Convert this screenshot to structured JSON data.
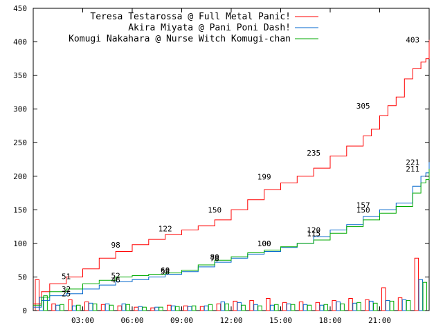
{
  "chart_data": {
    "type": "line",
    "title": "",
    "xlabel": "",
    "ylabel": "",
    "xlim": [
      0,
      24
    ],
    "ylim": [
      0,
      450
    ],
    "x_ticks": [
      {
        "value": 3,
        "label": "03:00"
      },
      {
        "value": 6,
        "label": "06:00"
      },
      {
        "value": 9,
        "label": "09:00"
      },
      {
        "value": 12,
        "label": "12:00"
      },
      {
        "value": 15,
        "label": "15:00"
      },
      {
        "value": 18,
        "label": "18:00"
      },
      {
        "value": 21,
        "label": "21:00"
      }
    ],
    "y_ticks": [
      {
        "value": 0,
        "label": "0"
      },
      {
        "value": 50,
        "label": "50"
      },
      {
        "value": 100,
        "label": "100"
      },
      {
        "value": 150,
        "label": "150"
      },
      {
        "value": 200,
        "label": "200"
      },
      {
        "value": 250,
        "label": "250"
      },
      {
        "value": 300,
        "label": "300"
      },
      {
        "value": 350,
        "label": "350"
      },
      {
        "value": 400,
        "label": "400"
      },
      {
        "value": 450,
        "label": "450"
      }
    ],
    "grid": false,
    "legend_position": "top-right",
    "hourly_x": [
      0.5,
      1.5,
      2.5,
      3.5,
      4.5,
      5.5,
      6.5,
      7.5,
      8.5,
      9.5,
      10.5,
      11.5,
      12.5,
      13.5,
      14.5,
      15.5,
      16.5,
      17.5,
      18.5,
      19.5,
      20.5,
      21.5,
      22.5,
      23.5
    ],
    "series": [
      {
        "name": "Teresa Testarossa @ Full Metal Panic!",
        "color": "#ff0000",
        "cumulative": {
          "x": [
            0,
            0.5,
            1,
            2,
            3,
            4,
            5,
            6,
            7,
            8,
            9,
            10,
            11,
            12,
            13,
            14,
            15,
            16,
            17,
            18,
            19,
            20,
            20.5,
            21,
            21.5,
            22,
            22.5,
            23,
            23.5,
            23.8,
            24
          ],
          "y": [
            10,
            28,
            40,
            50,
            62,
            78,
            88,
            98,
            106,
            113,
            120,
            126,
            135,
            150,
            165,
            180,
            190,
            200,
            212,
            230,
            245,
            260,
            270,
            290,
            305,
            318,
            345,
            360,
            370,
            375,
            403
          ]
        },
        "hourly": [
          46,
          10,
          16,
          13,
          9,
          7,
          5,
          4,
          8,
          7,
          6,
          10,
          14,
          15,
          18,
          12,
          13,
          12,
          15,
          18,
          16,
          34,
          19,
          78
        ],
        "annotations": [
          {
            "x": 2,
            "y": 51,
            "label": "51"
          },
          {
            "x": 5,
            "y": 98,
            "label": "98"
          },
          {
            "x": 8,
            "y": 122,
            "label": "122"
          },
          {
            "x": 11,
            "y": 150,
            "label": "150"
          },
          {
            "x": 14,
            "y": 199,
            "label": "199"
          },
          {
            "x": 17,
            "y": 235,
            "label": "235"
          },
          {
            "x": 20,
            "y": 305,
            "label": "305"
          },
          {
            "x": 23,
            "y": 403,
            "label": "403"
          }
        ]
      },
      {
        "name": "Akira Miyata @ Pani Poni Dash!",
        "color": "#0066cc",
        "cumulative": {
          "x": [
            0,
            0.5,
            1,
            2,
            3,
            4,
            5,
            6,
            7,
            8,
            9,
            10,
            11,
            12,
            13,
            14,
            15,
            16,
            17,
            18,
            19,
            20,
            21,
            22,
            23,
            23.5,
            23.8,
            24
          ],
          "y": [
            5,
            15,
            22,
            25,
            32,
            38,
            43,
            46,
            50,
            54,
            58,
            65,
            72,
            78,
            84,
            88,
            94,
            100,
            110,
            120,
            128,
            140,
            150,
            160,
            185,
            200,
            205,
            221
          ]
        },
        "hourly": [
          20,
          8,
          7,
          11,
          10,
          10,
          6,
          5,
          7,
          6,
          7,
          13,
          12,
          9,
          8,
          10,
          9,
          8,
          13,
          11,
          14,
          15,
          16,
          46
        ],
        "annotations": [
          {
            "x": 2,
            "y": 25,
            "label": "25"
          },
          {
            "x": 5,
            "y": 46,
            "label": "46"
          },
          {
            "x": 8,
            "y": 58,
            "label": "58"
          },
          {
            "x": 11,
            "y": 78,
            "label": "78"
          },
          {
            "x": 14,
            "y": 100,
            "label": "100"
          },
          {
            "x": 17,
            "y": 120,
            "label": "120"
          },
          {
            "x": 20,
            "y": 157,
            "label": "157"
          },
          {
            "x": 23,
            "y": 221,
            "label": "221"
          }
        ]
      },
      {
        "name": "Komugi Nakahara @ Nurse Witch Komugi-chan",
        "color": "#00aa00",
        "cumulative": {
          "x": [
            0,
            0.5,
            1,
            2,
            3,
            4,
            5,
            6,
            7,
            8,
            9,
            10,
            11,
            12,
            13,
            14,
            15,
            16,
            17,
            18,
            19,
            20,
            21,
            22,
            23,
            23.5,
            23.8,
            24
          ],
          "y": [
            8,
            20,
            28,
            32,
            40,
            45,
            50,
            52,
            54,
            56,
            60,
            68,
            75,
            80,
            86,
            90,
            95,
            100,
            105,
            115,
            125,
            135,
            145,
            155,
            175,
            190,
            195,
            211
          ]
        },
        "hourly": [
          22,
          9,
          8,
          10,
          8,
          9,
          5,
          5,
          6,
          7,
          9,
          10,
          8,
          7,
          9,
          9,
          8,
          9,
          10,
          12,
          11,
          14,
          15,
          42
        ],
        "annotations": [
          {
            "x": 2,
            "y": 32,
            "label": "32"
          },
          {
            "x": 5,
            "y": 52,
            "label": "52"
          },
          {
            "x": 8,
            "y": 60,
            "label": "60"
          },
          {
            "x": 11,
            "y": 80,
            "label": "80"
          },
          {
            "x": 14,
            "y": 100,
            "label": "100"
          },
          {
            "x": 17,
            "y": 115,
            "label": "115"
          },
          {
            "x": 20,
            "y": 150,
            "label": "150"
          },
          {
            "x": 23,
            "y": 211,
            "label": "211"
          }
        ]
      }
    ]
  }
}
